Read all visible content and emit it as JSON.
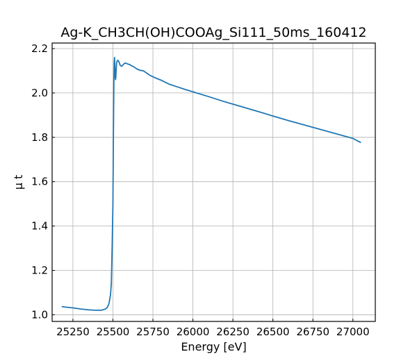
{
  "chart_data": {
    "type": "line",
    "title": "Ag-K_CH3CH(OH)COOAg_Si111_50ms_160412",
    "xlabel": "Energy [eV]",
    "ylabel": "μ t",
    "xlim": [
      25120,
      27140
    ],
    "ylim": [
      0.97,
      2.225
    ],
    "xticks": [
      25250,
      25500,
      25750,
      26000,
      26250,
      26500,
      26750,
      27000
    ],
    "yticks": [
      1.0,
      1.2,
      1.4,
      1.6,
      1.8,
      2.0,
      2.2
    ],
    "xtick_labels": [
      "25250",
      "25500",
      "25750",
      "26000",
      "26250",
      "26500",
      "26750",
      "27000"
    ],
    "ytick_labels": [
      "1.0",
      "1.2",
      "1.4",
      "1.6",
      "1.8",
      "2.0",
      "2.2"
    ],
    "grid": true,
    "line_color": "#1f77b4",
    "series": [
      {
        "x": [
          25180,
          25200,
          25250,
          25300,
          25350,
          25400,
          25430,
          25450,
          25465,
          25475,
          25485,
          25490,
          25495,
          25500,
          25503,
          25506,
          25508,
          25510,
          25512,
          25514,
          25516,
          25518,
          25520,
          25523,
          25527,
          25532,
          25538,
          25545,
          25555,
          25565,
          25575,
          25585,
          25595,
          25605,
          25615,
          25630,
          25650,
          25670,
          25690,
          25710,
          25730,
          25750,
          25775,
          25800,
          25850,
          25900,
          25950,
          26000,
          26100,
          26200,
          26300,
          26400,
          26500,
          26600,
          26700,
          26800,
          26900,
          27000,
          27050
        ],
        "y": [
          1.037,
          1.035,
          1.031,
          1.026,
          1.022,
          1.02,
          1.021,
          1.025,
          1.033,
          1.05,
          1.09,
          1.14,
          1.3,
          1.5,
          1.8,
          2.05,
          2.14,
          2.16,
          2.12,
          2.08,
          2.06,
          2.068,
          2.1,
          2.135,
          2.145,
          2.147,
          2.14,
          2.125,
          2.12,
          2.128,
          2.135,
          2.133,
          2.13,
          2.128,
          2.123,
          2.118,
          2.108,
          2.102,
          2.1,
          2.09,
          2.08,
          2.073,
          2.065,
          2.058,
          2.04,
          2.028,
          2.016,
          2.005,
          1.983,
          1.96,
          1.939,
          1.918,
          1.896,
          1.875,
          1.855,
          1.835,
          1.815,
          1.795,
          1.776
        ]
      }
    ]
  }
}
